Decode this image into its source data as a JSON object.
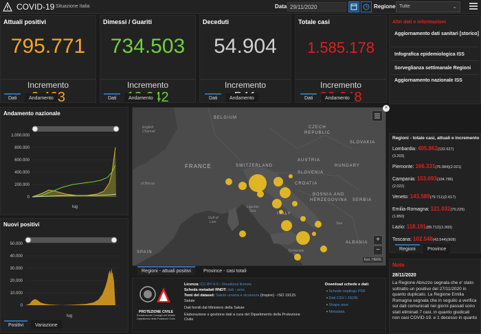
{
  "header": {
    "title": "COVID-19",
    "subtitle": "Situazione Italia",
    "date_label": "Data",
    "date_value": "29/11/2020",
    "region_label": "Regione",
    "region_value": "Tutte"
  },
  "stats": [
    {
      "title": "Attuali positivi",
      "value": "795.771",
      "inc_label": "Incremento",
      "inc": "6.463",
      "color": "#f5a623"
    },
    {
      "title": "Dimessi / Guariti",
      "value": "734.503",
      "inc_label": "Incremento",
      "inc": "13.642",
      "color": "#6fd23a"
    },
    {
      "title": "Deceduti",
      "value": "54.904",
      "inc_label": "Incremento",
      "inc": "541",
      "color": "#cfcfcf"
    },
    {
      "title": "Totale casi",
      "value": "1.585.178",
      "inc_label": "Incremento",
      "inc": "20.648",
      "color": "#e02020"
    }
  ],
  "tabs": {
    "dati": "Dati",
    "andamento": "Andamento"
  },
  "info": {
    "title": "Altri dati e informazioni",
    "items": [
      "Aggiornamento dati sanitari [storico]",
      "Infografica epidemiologica ISS",
      "Sorveglianza settimanale Regioni",
      "Aggiornamento nazionale ISS"
    ]
  },
  "andamento": {
    "title": "Andamento nazionale",
    "yticks": [
      "1.000.000",
      "800.000",
      "600.000",
      "400.000",
      "200.000",
      "0"
    ],
    "xlabel": "lug"
  },
  "nuovi": {
    "title": "Nuovi positivi",
    "yticks": [
      "50.000",
      "40.000",
      "30.000",
      "20.000",
      "10.000",
      "0"
    ],
    "xlabel": "lug",
    "tab_positivi": "Positivi",
    "tab_variazione": "Variazione"
  },
  "map": {
    "labels": {
      "belgium": "BELGIUM",
      "czech": "CZECH",
      "czech2": "REPUBLIC",
      "slovakia": "SLOVAKIA",
      "france": "FRANCE",
      "austria": "AUSTRIA",
      "hungary": "HUNGARY",
      "switzerland": "SWITZERLAND",
      "slovenia": "SLOVENIA",
      "croatia": "CROATIA",
      "bosnia": "BOSNIA AND",
      "bosnia2": "HERZEGOVINA",
      "serbia": "SERBIA",
      "spain": "SPAIN",
      "italy": "ITALY",
      "albania": "ALBANIA",
      "english": "English",
      "english2": "Channel",
      "biscay": "of Biscay",
      "ligurian": "Ligurian",
      "ligurian2": "Sea",
      "gulf": "Gulf of",
      "gulf2": "Lion",
      "tyrrhenian": "Tyrrhenian",
      "tyrrhenian2": "Sea",
      "sea": "Sea"
    },
    "tab_regioni": "Regioni - attuali positivi",
    "tab_province": "Province - casi totali",
    "attribution": "Esri, HERE"
  },
  "regions": {
    "title": "Regioni - totale casi, attuali e incremento",
    "rows": [
      {
        "name": "Lombardia:",
        "total": "405.862",
        "a": "(132.627)",
        "b": "(3.203)"
      },
      {
        "name": "Piemonte:",
        "total": "166.331",
        "a": "(76.984)",
        "b": "(2.021)"
      },
      {
        "name": "Campania:",
        "total": "153.693",
        "a": "(104.786)",
        "b": "(2.022)"
      },
      {
        "name": "Veneto:",
        "total": "143.589",
        "a": "(79.711)",
        "b": "(2.617)"
      },
      {
        "name": "Emilia-Romagna:",
        "total": "121.032",
        "a": "(70.229)",
        "b": "(1.850)"
      },
      {
        "name": "Lazio:",
        "total": "118.191",
        "a": "(89.712)",
        "b": "(1.993)"
      },
      {
        "name": "Toscana:",
        "total": "102.548",
        "a": "(43.544)",
        "b": "(908)"
      }
    ],
    "tab_regioni": "Regioni",
    "tab_province": "Province"
  },
  "footer": {
    "licenza_label": "Licenza:",
    "licenza_value": "CC-BY-4.0",
    "licenza_link": "Visualizza licenza",
    "metadati_label": "Scheda metadati RNDT:",
    "metadati_a": "dati",
    "metadati_b": "aree",
    "temi_label": "Temi del dataset:",
    "temi_value": "Salute umana e sicurezza",
    "temi_rest": "(Inspire) - ISO 19115:",
    "temi_rest2": "Salute",
    "fonti": "Dati forniti dal Ministero della Salute",
    "elab": "Elaborazione e gestione dati a cura del Dipartimento della Protezione",
    "elab2": "Civile",
    "download_title": "Download schede e dati:",
    "downloads": [
      "Schede riepilogo PDF",
      "Dati CSV / JSON",
      "Shape aree",
      "Metadata"
    ],
    "logo_text": "PROTEZIONE CIVILE",
    "logo_sub": "Presidenza del Consiglio dei Ministri",
    "logo_sub2": "Dipartimento della Protezione Civile"
  },
  "note": {
    "title": "Note",
    "date": "28/11/2020",
    "text": "La Regione Abruzzo segnala che e' stato sottratto un positivo del 27/11/2020 in quanto duplicato. La Regione Emilia Romagna segnala che in seguito a verifica sui dati comunicati nei giorni passati sono stati eliminati 7 casi, in quanto giudicati non casi COVID-19. e 1 decesso in quanto"
  }
}
